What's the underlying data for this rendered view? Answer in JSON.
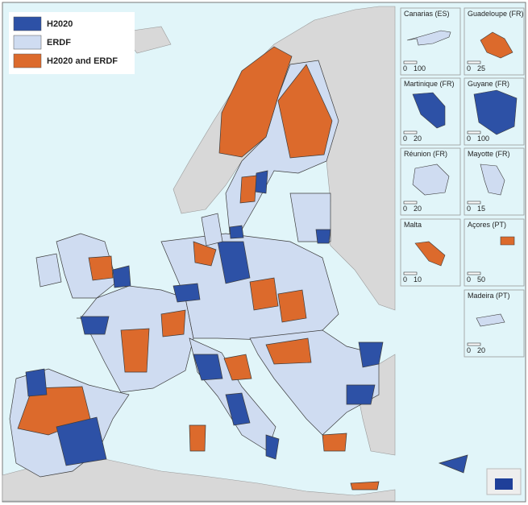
{
  "legend": [
    {
      "label": "H2020",
      "color": "#2d51a6"
    },
    {
      "label": "ERDF",
      "color": "#cfdcf1"
    },
    {
      "label": "H2020 and ERDF",
      "color": "#dc6a2c"
    }
  ],
  "insets": [
    {
      "name": "Canarias (ES)",
      "scale": [
        0,
        100
      ]
    },
    {
      "name": "Guadeloupe (FR)",
      "scale": [
        0,
        25
      ]
    },
    {
      "name": "Martinique (FR)",
      "scale": [
        0,
        20
      ]
    },
    {
      "name": "Guyane (FR)",
      "scale": [
        0,
        100
      ]
    },
    {
      "name": "Réunion (FR)",
      "scale": [
        0,
        20
      ]
    },
    {
      "name": "Mayotte (FR)",
      "scale": [
        0,
        15
      ]
    },
    {
      "name": "Malta",
      "scale": [
        0,
        10
      ]
    },
    {
      "name": "Açores (PT)",
      "scale": [
        0,
        50
      ]
    },
    {
      "name": "Madeira (PT)",
      "scale": [
        0,
        20
      ]
    }
  ]
}
